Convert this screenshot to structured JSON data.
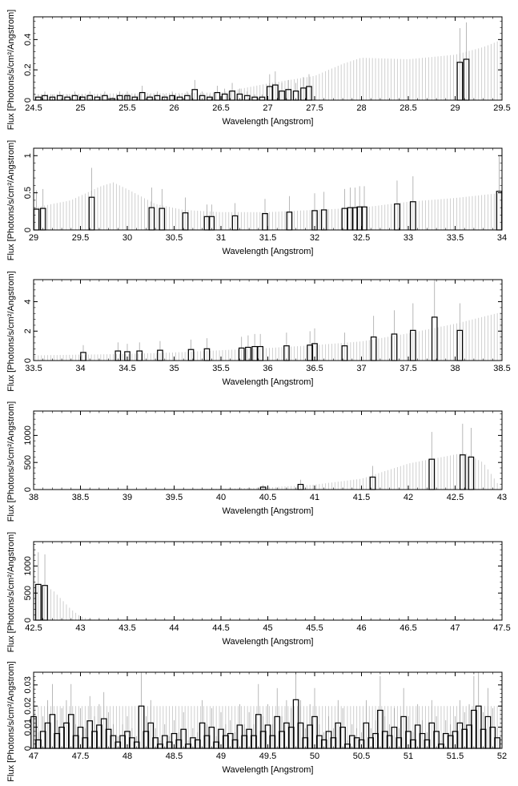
{
  "chart_data": [
    {
      "type": "bar",
      "xlabel": "Wavelength [Angstrom]",
      "ylabel": "Flux [Photons/s/cm²/Angstrom]",
      "xlim": [
        24.5,
        29.5
      ],
      "ylim": [
        0,
        0.55
      ],
      "xticks": [
        "24.5",
        "25",
        "25.5",
        "26",
        "26.5",
        "27",
        "27.5",
        "28",
        "28.5",
        "29",
        "29.5"
      ],
      "yticks": [
        "0",
        "0.2",
        "0.4"
      ],
      "grid": false,
      "points": [
        [
          24.55,
          0.02
        ],
        [
          24.62,
          0.03
        ],
        [
          24.7,
          0.02
        ],
        [
          24.78,
          0.03
        ],
        [
          24.86,
          0.02
        ],
        [
          24.94,
          0.03
        ],
        [
          25.02,
          0.02
        ],
        [
          25.1,
          0.03
        ],
        [
          25.18,
          0.02
        ],
        [
          25.26,
          0.03
        ],
        [
          25.34,
          0.01
        ],
        [
          25.42,
          0.03
        ],
        [
          25.5,
          0.03
        ],
        [
          25.58,
          0.02
        ],
        [
          25.66,
          0.05
        ],
        [
          25.74,
          0.02
        ],
        [
          25.82,
          0.03
        ],
        [
          25.9,
          0.02
        ],
        [
          25.98,
          0.03
        ],
        [
          26.06,
          0.02
        ],
        [
          26.14,
          0.03
        ],
        [
          26.22,
          0.07
        ],
        [
          26.3,
          0.03
        ],
        [
          26.38,
          0.02
        ],
        [
          26.46,
          0.05
        ],
        [
          26.54,
          0.04
        ],
        [
          26.62,
          0.06
        ],
        [
          26.7,
          0.04
        ],
        [
          26.78,
          0.03
        ],
        [
          26.86,
          0.02
        ],
        [
          26.94,
          0.02
        ],
        [
          27.02,
          0.09
        ],
        [
          27.08,
          0.1
        ],
        [
          27.15,
          0.06
        ],
        [
          27.22,
          0.07
        ],
        [
          27.3,
          0.06
        ],
        [
          27.38,
          0.08
        ],
        [
          27.44,
          0.09
        ],
        [
          29.05,
          0.25
        ],
        [
          29.12,
          0.27
        ]
      ],
      "envelope": [
        [
          24.5,
          0.04
        ],
        [
          26.5,
          0.05
        ],
        [
          27.0,
          0.11
        ],
        [
          27.5,
          0.16
        ],
        [
          27.8,
          0.24
        ],
        [
          28.0,
          0.28
        ],
        [
          28.5,
          0.27
        ],
        [
          29.0,
          0.3
        ],
        [
          29.3,
          0.35
        ],
        [
          29.5,
          0.4
        ]
      ]
    },
    {
      "type": "bar",
      "xlabel": "Wavelength [Angstrom]",
      "ylabel": "Flux [Photons/s/cm²/Angstrom]",
      "xlim": [
        29,
        34
      ],
      "ylim": [
        0,
        1.1
      ],
      "xticks": [
        "29",
        "29.5",
        "30",
        "30.5",
        "31",
        "31.5",
        "32",
        "32.5",
        "33",
        "33.5",
        "34"
      ],
      "yticks": [
        "0",
        "0.5",
        "1"
      ],
      "grid": false,
      "points": [
        [
          29.03,
          0.28
        ],
        [
          29.1,
          0.29
        ],
        [
          29.62,
          0.44
        ],
        [
          30.26,
          0.3
        ],
        [
          30.37,
          0.29
        ],
        [
          30.62,
          0.23
        ],
        [
          30.85,
          0.18
        ],
        [
          30.9,
          0.18
        ],
        [
          31.15,
          0.19
        ],
        [
          31.47,
          0.22
        ],
        [
          31.73,
          0.24
        ],
        [
          32.0,
          0.26
        ],
        [
          32.1,
          0.27
        ],
        [
          32.32,
          0.29
        ],
        [
          32.38,
          0.3
        ],
        [
          32.43,
          0.3
        ],
        [
          32.48,
          0.31
        ],
        [
          32.53,
          0.31
        ],
        [
          32.88,
          0.35
        ],
        [
          33.05,
          0.38
        ],
        [
          33.97,
          0.52
        ]
      ],
      "envelope": [
        [
          29.0,
          0.3
        ],
        [
          29.4,
          0.4
        ],
        [
          29.7,
          0.58
        ],
        [
          29.85,
          0.64
        ],
        [
          30.0,
          0.55
        ],
        [
          30.3,
          0.35
        ],
        [
          30.6,
          0.27
        ],
        [
          31.0,
          0.24
        ],
        [
          31.5,
          0.24
        ],
        [
          32.0,
          0.27
        ],
        [
          32.5,
          0.3
        ],
        [
          33.0,
          0.38
        ],
        [
          33.5,
          0.43
        ],
        [
          34.0,
          0.5
        ]
      ]
    },
    {
      "type": "bar",
      "xlabel": "Wavelength [Angstrom]",
      "ylabel": "Flux [Photons/s/cm²/Angstrom]",
      "xlim": [
        33.5,
        38.5
      ],
      "ylim": [
        0,
        5.5
      ],
      "xticks": [
        "33.5",
        "34",
        "34.5",
        "35",
        "35.5",
        "36",
        "36.5",
        "37",
        "37.5",
        "38",
        "38.5"
      ],
      "yticks": [
        "0",
        "2",
        "4"
      ],
      "grid": false,
      "points": [
        [
          34.03,
          0.55
        ],
        [
          34.4,
          0.65
        ],
        [
          34.5,
          0.6
        ],
        [
          34.63,
          0.65
        ],
        [
          34.85,
          0.7
        ],
        [
          35.18,
          0.75
        ],
        [
          35.35,
          0.8
        ],
        [
          35.72,
          0.85
        ],
        [
          35.79,
          0.9
        ],
        [
          35.86,
          0.95
        ],
        [
          35.92,
          0.95
        ],
        [
          36.2,
          1.0
        ],
        [
          36.45,
          1.05
        ],
        [
          36.5,
          1.15
        ],
        [
          36.82,
          1.0
        ],
        [
          37.13,
          1.6
        ],
        [
          37.35,
          1.8
        ],
        [
          37.55,
          2.05
        ],
        [
          37.78,
          2.95
        ],
        [
          38.05,
          2.05
        ]
      ],
      "envelope": [
        [
          33.5,
          0.35
        ],
        [
          34.0,
          0.4
        ],
        [
          34.5,
          0.45
        ],
        [
          35.0,
          0.55
        ],
        [
          35.5,
          0.7
        ],
        [
          36.0,
          0.85
        ],
        [
          36.5,
          1.05
        ],
        [
          37.0,
          1.3
        ],
        [
          37.5,
          1.85
        ],
        [
          38.0,
          2.5
        ],
        [
          38.5,
          3.3
        ]
      ]
    },
    {
      "type": "bar",
      "xlabel": "Wavelength [Angstrom]",
      "ylabel": "Flux [Photons/s/cm²/Angstrom]",
      "xlim": [
        38,
        43
      ],
      "ylim": [
        0,
        1450
      ],
      "xticks": [
        "38",
        "38.5",
        "39",
        "39.5",
        "40",
        "40.5",
        "41",
        "41.5",
        "42",
        "42.5",
        "43"
      ],
      "yticks": [
        "0",
        "500",
        "1000"
      ],
      "grid": false,
      "points": [
        [
          40.45,
          45
        ],
        [
          40.85,
          95
        ],
        [
          41.62,
          230
        ],
        [
          42.25,
          560
        ],
        [
          42.58,
          640
        ],
        [
          42.67,
          600
        ]
      ],
      "envelope": [
        [
          38.0,
          2
        ],
        [
          39.0,
          4
        ],
        [
          39.5,
          8
        ],
        [
          40.0,
          15
        ],
        [
          40.5,
          40
        ],
        [
          41.0,
          90
        ],
        [
          41.5,
          200
        ],
        [
          42.0,
          480
        ],
        [
          42.3,
          580
        ],
        [
          42.6,
          680
        ],
        [
          42.8,
          500
        ],
        [
          42.95,
          120
        ],
        [
          43.0,
          20
        ]
      ]
    },
    {
      "type": "bar",
      "xlabel": "Wavelength [Angstrom]",
      "ylabel": "Flux [Photons/s/cm²/Angstrom]",
      "xlim": [
        42.5,
        47.5
      ],
      "ylim": [
        0,
        1450
      ],
      "xticks": [
        "42.5",
        "43",
        "43.5",
        "44",
        "44.5",
        "45",
        "45.5",
        "46",
        "46.5",
        "47",
        "47.5"
      ],
      "yticks": [
        "0",
        "500",
        "1000"
      ],
      "grid": false,
      "points": [
        [
          42.55,
          660
        ],
        [
          42.62,
          640
        ]
      ],
      "envelope": [
        [
          42.5,
          680
        ],
        [
          42.7,
          560
        ],
        [
          42.8,
          380
        ],
        [
          42.9,
          200
        ],
        [
          43.0,
          70
        ],
        [
          43.1,
          15
        ],
        [
          43.3,
          3
        ],
        [
          47.5,
          2
        ]
      ]
    },
    {
      "type": "bar",
      "xlabel": "Wavelength [Angstrom]",
      "ylabel": "Flux [Photons/s/cm²/Angstrom]",
      "xlim": [
        47,
        52
      ],
      "ylim": [
        0,
        0.036
      ],
      "xticks": [
        "47",
        "47.5",
        "48",
        "48.5",
        "49",
        "49.5",
        "50",
        "50.5",
        "51",
        "51.5",
        "52"
      ],
      "yticks": [
        "0",
        "0.01",
        "0.02",
        "0.03"
      ],
      "grid": false,
      "points": [
        [
          47.0,
          0.015
        ],
        [
          47.05,
          0.004
        ],
        [
          47.1,
          0.008
        ],
        [
          47.15,
          0.012
        ],
        [
          47.2,
          0.016
        ],
        [
          47.25,
          0.007
        ],
        [
          47.3,
          0.01
        ],
        [
          47.35,
          0.012
        ],
        [
          47.4,
          0.016
        ],
        [
          47.45,
          0.006
        ],
        [
          47.5,
          0.01
        ],
        [
          47.55,
          0.005
        ],
        [
          47.6,
          0.013
        ],
        [
          47.65,
          0.008
        ],
        [
          47.7,
          0.011
        ],
        [
          47.75,
          0.014
        ],
        [
          47.8,
          0.009
        ],
        [
          47.85,
          0.006
        ],
        [
          47.9,
          0.003
        ],
        [
          47.95,
          0.006
        ],
        [
          48.0,
          0.008
        ],
        [
          48.05,
          0.005
        ],
        [
          48.1,
          0.003
        ],
        [
          48.15,
          0.02
        ],
        [
          48.2,
          0.008
        ],
        [
          48.25,
          0.012
        ],
        [
          48.3,
          0.005
        ],
        [
          48.35,
          0.002
        ],
        [
          48.4,
          0.006
        ],
        [
          48.45,
          0.003
        ],
        [
          48.5,
          0.007
        ],
        [
          48.55,
          0.004
        ],
        [
          48.6,
          0.009
        ],
        [
          48.65,
          0.002
        ],
        [
          48.7,
          0.005
        ],
        [
          48.75,
          0.004
        ],
        [
          48.8,
          0.012
        ],
        [
          48.85,
          0.006
        ],
        [
          48.9,
          0.01
        ],
        [
          48.95,
          0.003
        ],
        [
          49.0,
          0.009
        ],
        [
          49.05,
          0.006
        ],
        [
          49.1,
          0.007
        ],
        [
          49.15,
          0.004
        ],
        [
          49.2,
          0.011
        ],
        [
          49.25,
          0.006
        ],
        [
          49.3,
          0.009
        ],
        [
          49.35,
          0.006
        ],
        [
          49.4,
          0.016
        ],
        [
          49.45,
          0.008
        ],
        [
          49.5,
          0.011
        ],
        [
          49.55,
          0.006
        ],
        [
          49.6,
          0.015
        ],
        [
          49.65,
          0.008
        ],
        [
          49.7,
          0.012
        ],
        [
          49.75,
          0.01
        ],
        [
          49.8,
          0.023
        ],
        [
          49.85,
          0.012
        ],
        [
          49.9,
          0.005
        ],
        [
          49.95,
          0.011
        ],
        [
          50.0,
          0.015
        ],
        [
          50.05,
          0.006
        ],
        [
          50.1,
          0.004
        ],
        [
          50.15,
          0.008
        ],
        [
          50.2,
          0.005
        ],
        [
          50.25,
          0.012
        ],
        [
          50.3,
          0.01
        ],
        [
          50.35,
          0.002
        ],
        [
          50.4,
          0.006
        ],
        [
          50.45,
          0.005
        ],
        [
          50.5,
          0.004
        ],
        [
          50.55,
          0.012
        ],
        [
          50.6,
          0.005
        ],
        [
          50.65,
          0.007
        ],
        [
          50.7,
          0.018
        ],
        [
          50.75,
          0.008
        ],
        [
          50.8,
          0.006
        ],
        [
          50.85,
          0.01
        ],
        [
          50.9,
          0.005
        ],
        [
          50.95,
          0.015
        ],
        [
          51.0,
          0.008
        ],
        [
          51.05,
          0.004
        ],
        [
          51.1,
          0.011
        ],
        [
          51.15,
          0.007
        ],
        [
          51.2,
          0.004
        ],
        [
          51.25,
          0.012
        ],
        [
          51.3,
          0.008
        ],
        [
          51.35,
          0.002
        ],
        [
          51.4,
          0.007
        ],
        [
          51.45,
          0.006
        ],
        [
          51.5,
          0.008
        ],
        [
          51.55,
          0.012
        ],
        [
          51.6,
          0.009
        ],
        [
          51.65,
          0.011
        ],
        [
          51.7,
          0.018
        ],
        [
          51.75,
          0.02
        ],
        [
          51.8,
          0.009
        ],
        [
          51.85,
          0.015
        ],
        [
          51.9,
          0.01
        ],
        [
          51.95,
          0.005
        ]
      ],
      "envelope": [
        [
          47.0,
          0.02
        ],
        [
          52.0,
          0.02
        ]
      ]
    }
  ]
}
